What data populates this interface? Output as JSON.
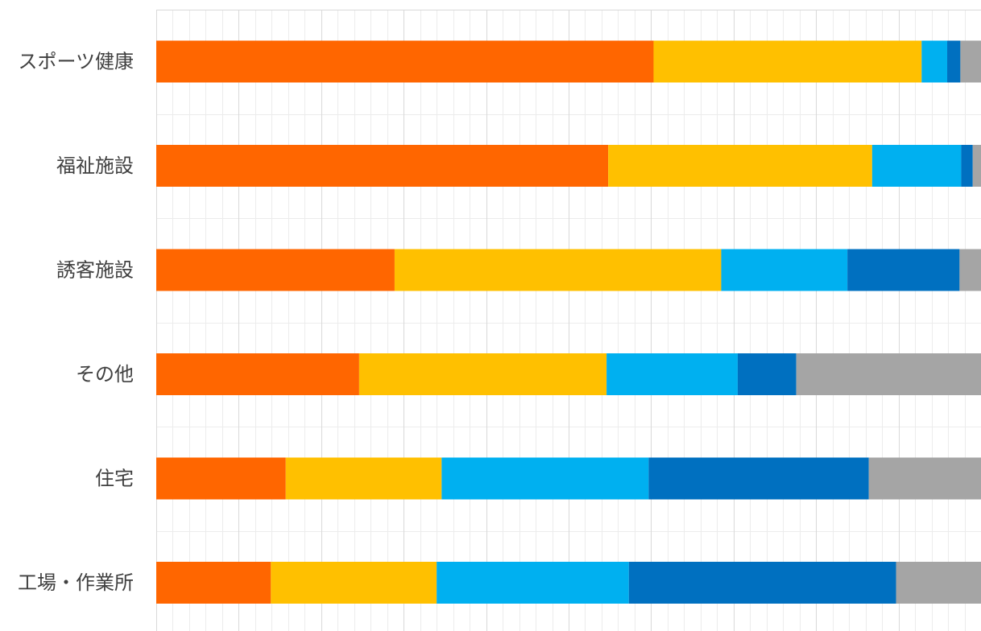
{
  "chart_data": {
    "type": "bar",
    "orientation": "horizontal",
    "stacked": "100%",
    "title": "",
    "xlabel": "",
    "ylabel": "",
    "xlim": [
      0,
      100
    ],
    "grid": true,
    "legend": "none",
    "categories": [
      "スポーツ健康",
      "福祉施設",
      "誘客施設",
      "その他",
      "住宅",
      "工場・作業所"
    ],
    "series": [
      {
        "color": "#FF6600",
        "values": [
          60.3,
          54.8,
          28.9,
          24.6,
          15.7,
          13.9
        ]
      },
      {
        "color": "#FFC000",
        "values": [
          32.5,
          32.0,
          39.6,
          30.0,
          18.9,
          20.1
        ]
      },
      {
        "color": "#00B0F0",
        "values": [
          3.1,
          10.8,
          15.3,
          15.9,
          25.1,
          23.3
        ]
      },
      {
        "color": "#0070C0",
        "values": [
          1.6,
          1.4,
          13.6,
          7.1,
          26.7,
          32.4
        ]
      },
      {
        "color": "#A5A5A5",
        "values": [
          2.5,
          1.0,
          2.6,
          22.4,
          13.6,
          10.3
        ]
      }
    ]
  }
}
